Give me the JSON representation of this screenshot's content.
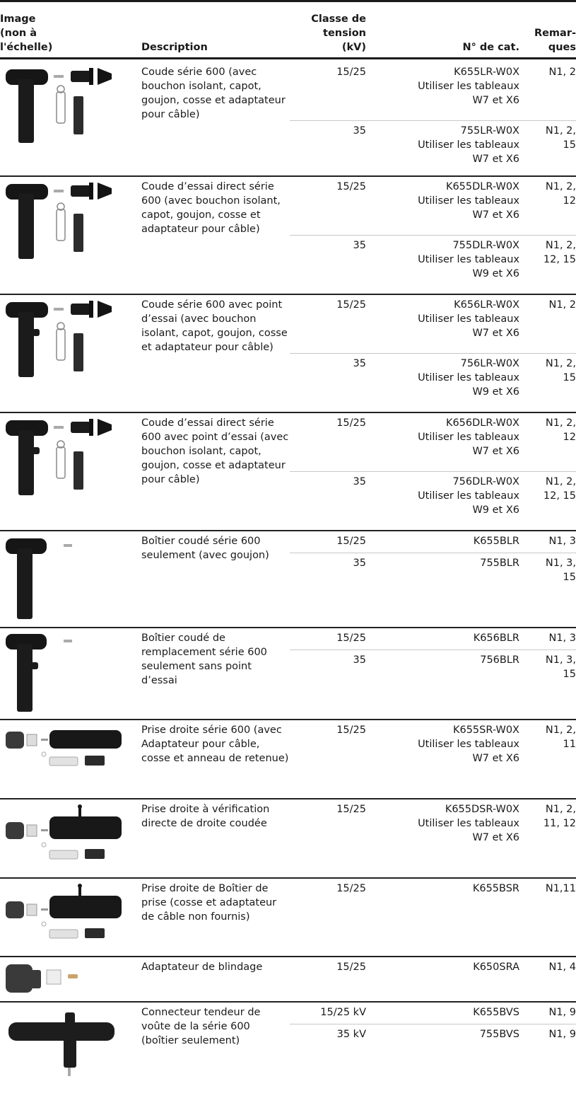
{
  "headers": {
    "image": "Image\n(non à\nl'échelle)",
    "description": "Description",
    "voltage": "Classe de\ntension\n(kV)",
    "catalog": "N° de cat.",
    "remarks": "Remar-\nques"
  },
  "groups": [
    {
      "description": "Coude série 600 (avec bouchon isolant, capot, goujon, cosse et adaptateur pour câble)",
      "image_icon": "elbow-kit-icon",
      "rows": [
        {
          "voltage": "15/25",
          "catalog": "K655LR-W0X\nUtiliser les tableaux\nW7 et X6",
          "remarks": "N1, 2"
        },
        {
          "voltage": "35",
          "catalog": "755LR-W0X\nUtiliser les tableaux\nW7 et X6",
          "remarks": "N1, 2,\n15"
        }
      ]
    },
    {
      "description": "Coude d’essai direct série 600 (avec bouchon isolant, capot, goujon, cosse et adaptateur pour câble)",
      "image_icon": "test-elbow-kit-icon",
      "rows": [
        {
          "voltage": "15/25",
          "catalog": "K655DLR-W0X\nUtiliser les tableaux\nW7 et X6",
          "remarks": "N1, 2,\n12"
        },
        {
          "voltage": "35",
          "catalog": "755DLR-W0X\nUtiliser les tableaux\nW9 et X6",
          "remarks": "N1, 2,\n12, 15"
        }
      ]
    },
    {
      "description": "Coude série 600 avec point d’essai (avec bouchon isolant, capot, goujon, cosse et adaptateur pour câble)",
      "image_icon": "elbow-test-point-kit-icon",
      "rows": [
        {
          "voltage": "15/25",
          "catalog": "K656LR-W0X\nUtiliser les tableaux\nW7 et X6",
          "remarks": "N1, 2"
        },
        {
          "voltage": "35",
          "catalog": "756LR-W0X\nUtiliser les tableaux\nW9 et X6",
          "remarks": "N1, 2,\n15"
        }
      ]
    },
    {
      "description": "Coude d’essai direct série 600 avec point d’essai (avec bouchon isolant, capot, goujon, cosse et adaptateur pour câble)",
      "image_icon": "test-elbow-test-point-kit-icon",
      "rows": [
        {
          "voltage": "15/25",
          "catalog": "K656DLR-W0X\nUtiliser les tableaux\nW7 et X6",
          "remarks": "N1, 2,\n12"
        },
        {
          "voltage": "35",
          "catalog": "756DLR-W0X\nUtiliser les tableaux\nW9 et X6",
          "remarks": "N1, 2,\n12, 15"
        }
      ]
    },
    {
      "description": "Boîtier coudé série 600 seulement (avec goujon)",
      "image_icon": "elbow-housing-icon",
      "rows": [
        {
          "voltage": "15/25",
          "catalog": "K655BLR",
          "remarks": "N1, 3"
        },
        {
          "voltage": "35",
          "catalog": "755BLR",
          "remarks": "N1, 3,\n15"
        }
      ]
    },
    {
      "description": "Boîtier coudé de remplacement série 600 seulement sans point d’essai",
      "image_icon": "replacement-elbow-housing-icon",
      "rows": [
        {
          "voltage": "15/25",
          "catalog": "K656BLR",
          "remarks": "N1, 3"
        },
        {
          "voltage": "35",
          "catalog": "756BLR",
          "remarks": "N1, 3,\n15"
        }
      ]
    },
    {
      "description": "Prise droite série 600 (avec Adaptateur pour câble, cosse et anneau de retenue)",
      "image_icon": "straight-plug-kit-icon",
      "rows": [
        {
          "voltage": "15/25",
          "catalog": "K655SR-W0X\nUtiliser les tableaux\nW7 et X6",
          "remarks": "N1, 2,\n11"
        }
      ]
    },
    {
      "description": "Prise droite à vérification directe de droite coudée",
      "image_icon": "straight-plug-test-kit-icon",
      "rows": [
        {
          "voltage": "15/25",
          "catalog": "K655DSR-W0X\nUtiliser les tableaux\nW7 et X6",
          "remarks": "N1, 2,\n11, 12"
        }
      ]
    },
    {
      "description": "Prise droite de Boîtier de prise (cosse et adaptateur de câble non fournis)",
      "image_icon": "straight-plug-housing-icon",
      "rows": [
        {
          "voltage": "15/25",
          "catalog": "K655BSR",
          "remarks": "N1,11"
        }
      ]
    },
    {
      "description": "Adaptateur de blindage",
      "image_icon": "shield-adapter-icon",
      "rows": [
        {
          "voltage": "15/25",
          "catalog": "K650SRA",
          "remarks": "N1, 4"
        }
      ]
    },
    {
      "description": "Connecteur tendeur de voûte de la série 600 (boîtier seulement)",
      "image_icon": "vault-stretch-connector-icon",
      "rows": [
        {
          "voltage": "15/25 kV",
          "catalog": "K655BVS",
          "remarks": "N1, 9"
        },
        {
          "voltage": "35 kV",
          "catalog": "755BVS",
          "remarks": "N1, 9"
        }
      ]
    }
  ]
}
